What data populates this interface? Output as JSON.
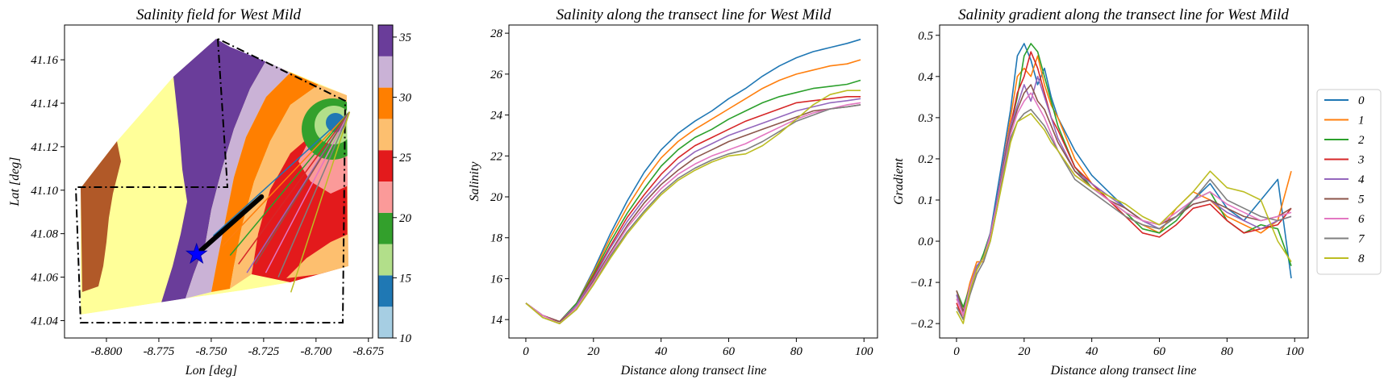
{
  "figure": {
    "panel1": {
      "title": "Salinity field for West Mild",
      "xlabel": "Lon [deg]",
      "ylabel": "Lat [deg]",
      "xticks": [
        "-8.800",
        "-8.775",
        "-8.750",
        "-8.725",
        "-8.700",
        "-8.675"
      ],
      "yticks": [
        "41.04",
        "41.06",
        "41.08",
        "41.10",
        "41.12",
        "41.14",
        "41.16"
      ],
      "colorbar_ticks": [
        "10",
        "15",
        "20",
        "25",
        "30",
        "35"
      ]
    },
    "panel2": {
      "title": "Salinity along the transect line for West Mild",
      "xlabel": "Distance along transect line",
      "ylabel": "Salinity",
      "xticks": [
        "0",
        "20",
        "40",
        "60",
        "80",
        "100"
      ],
      "yticks": [
        "14",
        "16",
        "18",
        "20",
        "22",
        "24",
        "26",
        "28"
      ]
    },
    "panel3": {
      "title": "Salinity gradient along the transect line for West Mild",
      "xlabel": "Distance along transect line",
      "ylabel": "Gradient",
      "xticks": [
        "0",
        "20",
        "40",
        "60",
        "80",
        "100"
      ],
      "yticks": [
        "−0.2",
        "−0.1",
        "0.0",
        "0.1",
        "0.2",
        "0.3",
        "0.4",
        "0.5"
      ]
    },
    "legend": [
      "0",
      "1",
      "2",
      "3",
      "4",
      "5",
      "6",
      "7",
      "8"
    ]
  },
  "chart_data": [
    {
      "type": "heatmap",
      "title": "Salinity field for West Mild",
      "xlabel": "Lon [deg]",
      "ylabel": "Lat [deg]",
      "xlim": [
        -8.82,
        -8.673
      ],
      "ylim": [
        41.032,
        41.176
      ],
      "colorbar": {
        "range": [
          10,
          36
        ],
        "bins": [
          {
            "from": 10,
            "to": 12.6,
            "color": "#a6cee3"
          },
          {
            "from": 12.6,
            "to": 15.2,
            "color": "#1f78b4"
          },
          {
            "from": 15.2,
            "to": 17.8,
            "color": "#b2df8a"
          },
          {
            "from": 17.8,
            "to": 20.4,
            "color": "#33a02c"
          },
          {
            "from": 20.4,
            "to": 23.0,
            "color": "#fb9a99"
          },
          {
            "from": 23.0,
            "to": 25.6,
            "color": "#e31a1c"
          },
          {
            "from": 25.6,
            "to": 28.2,
            "color": "#fdbf6f"
          },
          {
            "from": 28.2,
            "to": 30.8,
            "color": "#ff7f00"
          },
          {
            "from": 30.8,
            "to": 33.4,
            "color": "#cab2d6"
          },
          {
            "from": 33.4,
            "to": 36,
            "color": "#6a3d9a"
          },
          {
            "from": 36,
            "to": 38.6,
            "color": "#ffff99"
          },
          {
            "from": 38.6,
            "to": 41.2,
            "color": "#b15928"
          }
        ]
      },
      "marker": {
        "symbol": "star",
        "color": "#0000ff",
        "lon": -8.757,
        "lat": 41.0705
      },
      "transect_end": {
        "lon": -8.726,
        "lat": 41.097
      }
    },
    {
      "type": "line",
      "title": "Salinity along the transect line for West Mild",
      "xlabel": "Distance along transect line",
      "ylabel": "Salinity",
      "xlim": [
        -5,
        104
      ],
      "ylim": [
        13.1,
        28.4
      ],
      "x": [
        0,
        5,
        10,
        15,
        20,
        25,
        30,
        35,
        40,
        45,
        50,
        55,
        60,
        65,
        70,
        75,
        80,
        85,
        90,
        95,
        99
      ],
      "series": [
        {
          "name": "0",
          "values": [
            14.8,
            14.2,
            13.9,
            14.8,
            16.4,
            18.2,
            19.8,
            21.2,
            22.3,
            23.1,
            23.7,
            24.2,
            24.8,
            25.3,
            25.9,
            26.4,
            26.8,
            27.1,
            27.3,
            27.5,
            27.7
          ]
        },
        {
          "name": "1",
          "values": [
            14.8,
            14.2,
            13.9,
            14.8,
            16.3,
            18.0,
            19.5,
            20.8,
            21.9,
            22.7,
            23.3,
            23.8,
            24.3,
            24.8,
            25.3,
            25.7,
            26.0,
            26.2,
            26.4,
            26.5,
            26.7
          ]
        },
        {
          "name": "2",
          "values": [
            14.8,
            14.2,
            13.9,
            14.8,
            16.2,
            17.8,
            19.2,
            20.4,
            21.5,
            22.3,
            22.9,
            23.3,
            23.8,
            24.2,
            24.6,
            24.9,
            25.1,
            25.3,
            25.4,
            25.5,
            25.7
          ]
        },
        {
          "name": "3",
          "values": [
            14.8,
            14.2,
            13.9,
            14.7,
            16.1,
            17.6,
            19.0,
            20.1,
            21.1,
            21.9,
            22.5,
            22.9,
            23.3,
            23.7,
            24.0,
            24.3,
            24.6,
            24.7,
            24.8,
            24.9,
            24.9
          ]
        },
        {
          "name": "4",
          "values": [
            14.8,
            14.2,
            13.9,
            14.7,
            16.0,
            17.5,
            18.8,
            19.9,
            20.8,
            21.6,
            22.2,
            22.6,
            23.0,
            23.3,
            23.6,
            23.9,
            24.2,
            24.4,
            24.6,
            24.7,
            24.8
          ]
        },
        {
          "name": "5",
          "values": [
            14.8,
            14.2,
            13.9,
            14.6,
            15.9,
            17.3,
            18.6,
            19.7,
            20.6,
            21.3,
            21.9,
            22.3,
            22.7,
            23.0,
            23.3,
            23.6,
            23.9,
            24.2,
            24.3,
            24.4,
            24.5
          ]
        },
        {
          "name": "6",
          "values": [
            14.8,
            14.2,
            13.8,
            14.6,
            15.8,
            17.2,
            18.5,
            19.5,
            20.4,
            21.1,
            21.6,
            22.0,
            22.3,
            22.6,
            23.0,
            23.4,
            23.8,
            24.1,
            24.3,
            24.5,
            24.6
          ]
        },
        {
          "name": "7",
          "values": [
            14.8,
            14.1,
            13.8,
            14.5,
            15.7,
            17.1,
            18.3,
            19.3,
            20.2,
            20.9,
            21.4,
            21.8,
            22.1,
            22.3,
            22.7,
            23.2,
            23.7,
            24.0,
            24.3,
            24.4,
            24.5
          ]
        },
        {
          "name": "8",
          "values": [
            14.8,
            14.1,
            13.8,
            14.5,
            15.7,
            17.0,
            18.2,
            19.2,
            20.1,
            20.8,
            21.3,
            21.7,
            22.0,
            22.1,
            22.5,
            23.1,
            23.8,
            24.5,
            25.0,
            25.2,
            25.2
          ]
        }
      ],
      "colors": [
        "#1f77b4",
        "#ff7f0e",
        "#2ca02c",
        "#d62728",
        "#9467bd",
        "#8c564b",
        "#e377c2",
        "#7f7f7f",
        "#bcbd22"
      ]
    },
    {
      "type": "line",
      "title": "Salinity gradient along the transect line for West Mild",
      "xlabel": "Distance along transect line",
      "ylabel": "Gradient",
      "xlim": [
        -5,
        104
      ],
      "ylim": [
        -0.235,
        0.525
      ],
      "x": [
        0,
        2,
        4,
        6,
        8,
        10,
        12,
        14,
        16,
        18,
        20,
        22,
        24,
        26,
        28,
        30,
        35,
        40,
        45,
        50,
        55,
        60,
        65,
        70,
        75,
        80,
        85,
        90,
        95,
        99
      ],
      "series": [
        {
          "name": "0",
          "values": [
            -0.13,
            -0.18,
            -0.12,
            -0.06,
            -0.04,
            0.02,
            0.12,
            0.22,
            0.32,
            0.45,
            0.48,
            0.44,
            0.38,
            0.42,
            0.35,
            0.3,
            0.22,
            0.16,
            0.12,
            0.08,
            0.05,
            0.03,
            0.06,
            0.1,
            0.14,
            0.08,
            0.05,
            0.1,
            0.15,
            -0.09
          ]
        },
        {
          "name": "1",
          "values": [
            -0.14,
            -0.17,
            -0.1,
            -0.05,
            -0.05,
            0.01,
            0.1,
            0.2,
            0.3,
            0.4,
            0.42,
            0.4,
            0.45,
            0.38,
            0.33,
            0.3,
            0.2,
            0.14,
            0.1,
            0.06,
            0.04,
            0.02,
            0.08,
            0.12,
            0.1,
            0.06,
            0.04,
            0.02,
            0.05,
            0.17
          ]
        },
        {
          "name": "2",
          "values": [
            -0.12,
            -0.16,
            -0.11,
            -0.07,
            -0.03,
            0.02,
            0.1,
            0.18,
            0.28,
            0.35,
            0.45,
            0.48,
            0.46,
            0.4,
            0.34,
            0.28,
            0.18,
            0.13,
            0.1,
            0.07,
            0.03,
            0.02,
            0.05,
            0.1,
            0.12,
            0.05,
            0.02,
            0.04,
            0.03,
            -0.06
          ]
        },
        {
          "name": "3",
          "values": [
            -0.15,
            -0.19,
            -0.12,
            -0.07,
            -0.04,
            0.01,
            0.1,
            0.2,
            0.28,
            0.36,
            0.4,
            0.46,
            0.42,
            0.36,
            0.3,
            0.27,
            0.18,
            0.14,
            0.1,
            0.06,
            0.02,
            0.01,
            0.04,
            0.08,
            0.09,
            0.05,
            0.02,
            0.03,
            0.04,
            0.08
          ]
        },
        {
          "name": "4",
          "values": [
            -0.13,
            -0.18,
            -0.11,
            -0.06,
            -0.04,
            0.02,
            0.1,
            0.2,
            0.28,
            0.33,
            0.38,
            0.34,
            0.4,
            0.35,
            0.3,
            0.25,
            0.17,
            0.14,
            0.11,
            0.08,
            0.05,
            0.03,
            0.06,
            0.09,
            0.1,
            0.07,
            0.05,
            0.03,
            0.05,
            0.06
          ]
        },
        {
          "name": "5",
          "values": [
            -0.12,
            -0.17,
            -0.12,
            -0.07,
            -0.04,
            0.01,
            0.09,
            0.19,
            0.27,
            0.32,
            0.36,
            0.38,
            0.34,
            0.32,
            0.28,
            0.24,
            0.17,
            0.13,
            0.1,
            0.08,
            0.05,
            0.04,
            0.06,
            0.09,
            0.1,
            0.08,
            0.06,
            0.05,
            0.06,
            0.08
          ]
        },
        {
          "name": "6",
          "values": [
            -0.14,
            -0.18,
            -0.11,
            -0.07,
            -0.04,
            0.01,
            0.09,
            0.18,
            0.26,
            0.31,
            0.34,
            0.36,
            0.33,
            0.3,
            0.26,
            0.22,
            0.16,
            0.13,
            0.1,
            0.07,
            0.05,
            0.04,
            0.07,
            0.1,
            0.12,
            0.09,
            0.07,
            0.05,
            0.06,
            0.07
          ]
        },
        {
          "name": "7",
          "values": [
            -0.16,
            -0.19,
            -0.13,
            -0.08,
            -0.05,
            0.0,
            0.08,
            0.17,
            0.25,
            0.29,
            0.31,
            0.32,
            0.3,
            0.28,
            0.25,
            0.22,
            0.15,
            0.12,
            0.09,
            0.06,
            0.04,
            0.03,
            0.06,
            0.1,
            0.15,
            0.1,
            0.08,
            0.06,
            0.05,
            0.06
          ]
        },
        {
          "name": "8",
          "values": [
            -0.17,
            -0.2,
            -0.12,
            -0.07,
            -0.04,
            0.0,
            0.08,
            0.16,
            0.24,
            0.29,
            0.3,
            0.31,
            0.29,
            0.27,
            0.24,
            0.22,
            0.16,
            0.13,
            0.11,
            0.09,
            0.06,
            0.04,
            0.08,
            0.12,
            0.17,
            0.13,
            0.12,
            0.1,
            0.0,
            -0.05
          ]
        }
      ],
      "colors": [
        "#1f77b4",
        "#ff7f0e",
        "#2ca02c",
        "#d62728",
        "#9467bd",
        "#8c564b",
        "#e377c2",
        "#7f7f7f",
        "#bcbd22"
      ]
    }
  ]
}
